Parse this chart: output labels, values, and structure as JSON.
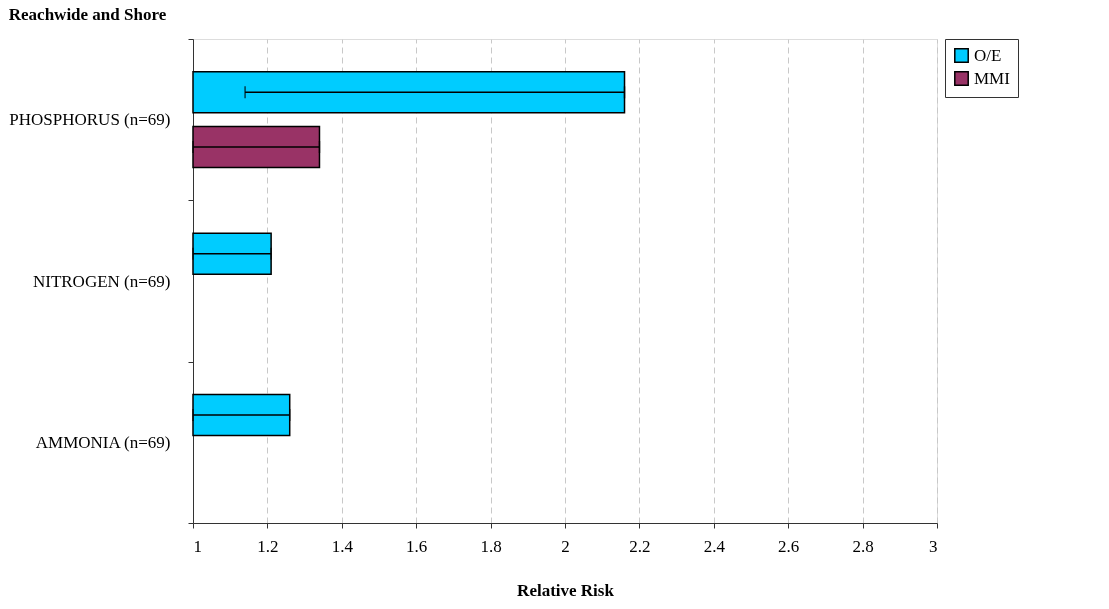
{
  "chart_data": {
    "type": "bar",
    "orientation": "horizontal",
    "title": "Reachwide and Shore",
    "xlabel": "Relative Risk",
    "categories": [
      "PHOSPHORUS (n=69)",
      "NITROGEN (n=69)",
      "AMMONIA (n=69)"
    ],
    "series": [
      {
        "name": "O/E",
        "color": "#00ccff",
        "values": [
          2.16,
          1.21,
          1.26
        ],
        "errors": [
          [
            1.14,
            2.16
          ],
          [
            1,
            1.21
          ],
          [
            1,
            1.26
          ]
        ]
      },
      {
        "name": "MMI",
        "color": "#993366",
        "values": [
          1.34,
          null,
          null
        ],
        "errors": [
          [
            1,
            1.34
          ],
          null,
          null
        ]
      }
    ],
    "xlim": [
      1,
      3
    ],
    "xticks": [
      1,
      1.2,
      1.4,
      1.6,
      1.8,
      2,
      2.2,
      2.4,
      2.6,
      2.8,
      3
    ],
    "grid": "x",
    "legend": "right"
  }
}
